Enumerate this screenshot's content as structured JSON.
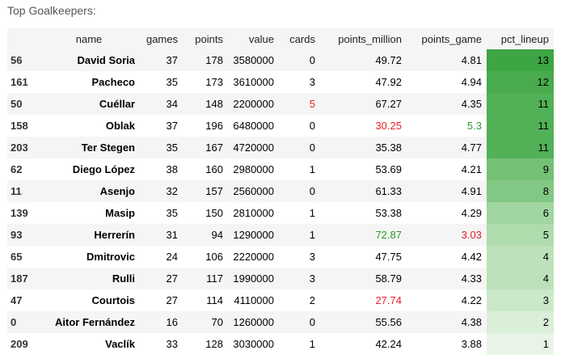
{
  "caption": "Top Goalkeepers:",
  "columns": [
    "",
    "name",
    "games",
    "points",
    "value",
    "cards",
    "points_million",
    "points_game",
    "pct_lineup"
  ],
  "rows": [
    {
      "idx": "56",
      "name": "David Soria",
      "games": "37",
      "points": "178",
      "value": "3580000",
      "cards": "0",
      "points_million": "49.72",
      "points_game": "4.81",
      "pct_lineup": "13",
      "bg": "#3da543",
      "cards_color": "",
      "pm_color": "",
      "pg_color": ""
    },
    {
      "idx": "161",
      "name": "Pacheco",
      "games": "35",
      "points": "173",
      "value": "3610000",
      "cards": "3",
      "points_million": "47.92",
      "points_game": "4.94",
      "pct_lineup": "12",
      "bg": "#48ab4d",
      "cards_color": "",
      "pm_color": "",
      "pg_color": ""
    },
    {
      "idx": "50",
      "name": "Cuéllar",
      "games": "34",
      "points": "148",
      "value": "2200000",
      "cards": "5",
      "points_million": "67.27",
      "points_game": "4.35",
      "pct_lineup": "11",
      "bg": "#52b157",
      "cards_color": "red",
      "pm_color": "",
      "pg_color": ""
    },
    {
      "idx": "158",
      "name": "Oblak",
      "games": "37",
      "points": "196",
      "value": "6480000",
      "cards": "0",
      "points_million": "30.25",
      "points_game": "5.3",
      "pct_lineup": "11",
      "bg": "#52b157",
      "cards_color": "",
      "pm_color": "red",
      "pg_color": "green"
    },
    {
      "idx": "203",
      "name": "Ter Stegen",
      "games": "35",
      "points": "167",
      "value": "4720000",
      "cards": "0",
      "points_million": "35.38",
      "points_game": "4.77",
      "pct_lineup": "11",
      "bg": "#52b157",
      "cards_color": "",
      "pm_color": "",
      "pg_color": ""
    },
    {
      "idx": "62",
      "name": "Diego López",
      "games": "38",
      "points": "160",
      "value": "2980000",
      "cards": "1",
      "points_million": "53.69",
      "points_game": "4.21",
      "pct_lineup": "9",
      "bg": "#74c176",
      "cards_color": "",
      "pm_color": "",
      "pg_color": ""
    },
    {
      "idx": "11",
      "name": "Asenjo",
      "games": "32",
      "points": "157",
      "value": "2560000",
      "cards": "0",
      "points_million": "61.33",
      "points_game": "4.91",
      "pct_lineup": "8",
      "bg": "#82c884",
      "cards_color": "",
      "pm_color": "",
      "pg_color": ""
    },
    {
      "idx": "139",
      "name": "Masip",
      "games": "35",
      "points": "150",
      "value": "2810000",
      "cards": "1",
      "points_million": "53.38",
      "points_game": "4.29",
      "pct_lineup": "6",
      "bg": "#a0d6a0",
      "cards_color": "",
      "pm_color": "",
      "pg_color": ""
    },
    {
      "idx": "93",
      "name": "Herrerín",
      "games": "31",
      "points": "94",
      "value": "1290000",
      "cards": "1",
      "points_million": "72.87",
      "points_game": "3.03",
      "pct_lineup": "5",
      "bg": "#aedcad",
      "cards_color": "",
      "pm_color": "green",
      "pg_color": "red"
    },
    {
      "idx": "65",
      "name": "Dmitrovic",
      "games": "24",
      "points": "106",
      "value": "2220000",
      "cards": "3",
      "points_million": "47.75",
      "points_game": "4.42",
      "pct_lineup": "4",
      "bg": "#bde2bb",
      "cards_color": "",
      "pm_color": "",
      "pg_color": ""
    },
    {
      "idx": "187",
      "name": "Rulli",
      "games": "27",
      "points": "117",
      "value": "1990000",
      "cards": "3",
      "points_million": "58.79",
      "points_game": "4.33",
      "pct_lineup": "4",
      "bg": "#bde2bb",
      "cards_color": "",
      "pm_color": "",
      "pg_color": ""
    },
    {
      "idx": "47",
      "name": "Courtois",
      "games": "27",
      "points": "114",
      "value": "4110000",
      "cards": "2",
      "points_million": "27.74",
      "points_game": "4.22",
      "pct_lineup": "3",
      "bg": "#cbe9c9",
      "cards_color": "",
      "pm_color": "red",
      "pg_color": ""
    },
    {
      "idx": "0",
      "name": "Aitor Fernández",
      "games": "16",
      "points": "70",
      "value": "1260000",
      "cards": "0",
      "points_million": "55.56",
      "points_game": "4.38",
      "pct_lineup": "2",
      "bg": "#d9efd7",
      "cards_color": "",
      "pm_color": "",
      "pg_color": ""
    },
    {
      "idx": "209",
      "name": "Vaclík",
      "games": "33",
      "points": "128",
      "value": "3030000",
      "cards": "1",
      "points_million": "42.24",
      "points_game": "3.88",
      "pct_lineup": "1",
      "bg": "#e8f5e6",
      "cards_color": "",
      "pm_color": "",
      "pg_color": ""
    }
  ]
}
